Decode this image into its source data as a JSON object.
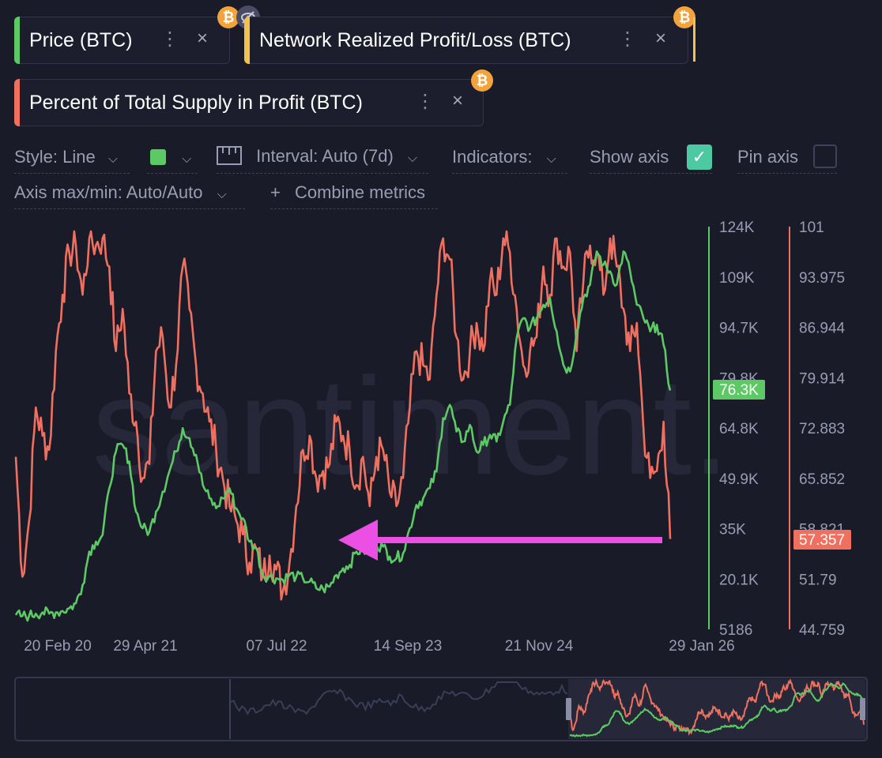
{
  "metrics": [
    {
      "label": "Price (BTC)",
      "color": "#5dc964"
    },
    {
      "label": "Network Realized Profit/Loss (BTC)",
      "color": "#f2c14e"
    },
    {
      "label": "Percent of Total Supply in Profit (BTC)",
      "color": "#f07060"
    }
  ],
  "icons": {
    "btc": "₿",
    "dots": "⋮",
    "close": "×",
    "check": "✓",
    "chevron": "⌄",
    "plus": "+"
  },
  "controls": {
    "style": "Style: Line",
    "interval": "Interval: Auto (7d)",
    "indicators": "Indicators:",
    "show_axis": "Show axis",
    "pin_axis": "Pin axis",
    "axis_maxmin": "Axis max/min: Auto/Auto",
    "combine": "Combine metrics",
    "selected_color": "#5dc964"
  },
  "watermark": "santiment.",
  "chart_data": {
    "type": "line",
    "x_labels": [
      "20 Feb 20",
      "29 Apr 21",
      "07 Jul 22",
      "14 Sep 23",
      "21 Nov 24",
      "29 Jan 26"
    ],
    "y_left": {
      "label": "Price (BTC)",
      "ticks": [
        "124K",
        "109K",
        "94.7K",
        "79.8K",
        "64.8K",
        "49.9K",
        "35K",
        "20.1K",
        "5186"
      ],
      "ylim": [
        5186,
        124000
      ]
    },
    "y_right": {
      "label": "Percent of Total Supply in Profit",
      "ticks": [
        "101",
        "93.975",
        "86.944",
        "79.914",
        "72.883",
        "65.852",
        "58.821",
        "51.79",
        "44.759"
      ],
      "ylim": [
        44.759,
        101
      ]
    },
    "current": {
      "price": "76.3K",
      "supply_profit": "57.357"
    },
    "series": [
      {
        "name": "Price (BTC)",
        "color": "#5dc964",
        "axis": "left",
        "values": [
          9000,
          8700,
          8800,
          9400,
          9800,
          9400,
          9800,
          10200,
          11000,
          12500,
          18000,
          28000,
          31000,
          33000,
          47000,
          58000,
          60000,
          55000,
          40000,
          35000,
          34000,
          40000,
          46000,
          52000,
          58000,
          65000,
          62000,
          57000,
          48000,
          44000,
          41000,
          44000,
          47000,
          41000,
          38000,
          31000,
          29000,
          21000,
          20500,
          20000,
          19500,
          21000,
          20500,
          20000,
          19000,
          17000,
          16800,
          17500,
          21000,
          23000,
          24000,
          28000,
          28500,
          27500,
          30000,
          29500,
          26500,
          26000,
          27500,
          35000,
          42000,
          44000,
          47000,
          52000,
          68000,
          72000,
          64000,
          61000,
          66000,
          58000,
          60000,
          63000,
          61000,
          67000,
          72000,
          92000,
          98000,
          95000,
          98000,
          102000,
          104000,
          94000,
          84000,
          82000,
          94000,
          104000,
          108000,
          118000,
          114000,
          112000,
          108000,
          118000,
          112000,
          102000,
          98000,
          94000,
          96000,
          90000,
          76300
        ]
      },
      {
        "name": "Percent of Total Supply in Profit (BTC)",
        "color": "#f07060",
        "axis": "right",
        "values": [
          69,
          52,
          60,
          76,
          72,
          70,
          84,
          92,
          98,
          99,
          92,
          100,
          99,
          100,
          96,
          84,
          90,
          78,
          74,
          66,
          68,
          84,
          86,
          76,
          82,
          96,
          90,
          82,
          78,
          74,
          70,
          66,
          62,
          60,
          58,
          54,
          56,
          52,
          55,
          53,
          50,
          54,
          62,
          70,
          72,
          66,
          67,
          68,
          74,
          72,
          70,
          65,
          69,
          62,
          69,
          70,
          64,
          62,
          66,
          76,
          84,
          82,
          80,
          92,
          100,
          97,
          86,
          80,
          84,
          88,
          84,
          94,
          92,
          100,
          98,
          90,
          82,
          84,
          86,
          96,
          92,
          100,
          96,
          98,
          84,
          94,
          99,
          98,
          92,
          100,
          96,
          90,
          84,
          88,
          73,
          66,
          67,
          74,
          57.357
        ]
      }
    ]
  }
}
